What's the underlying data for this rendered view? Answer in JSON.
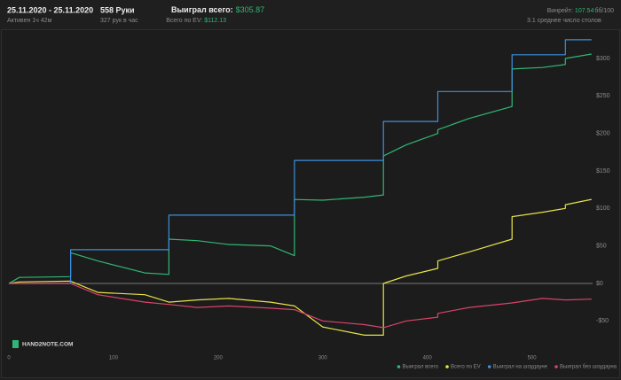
{
  "header": {
    "date_range": "25.11.2020 - 25.11.2020",
    "active": "Активен 1ч 42м",
    "hands": "558 Руки",
    "hands_per_hour": "327 рук в час",
    "won_total_label": "Выиграл всего:",
    "won_total_value": "$305.87",
    "ev_label": "Всего по EV:",
    "ev_value": "$112.13",
    "winrate_label": "Винрейт:",
    "winrate_value": "107.54",
    "winrate_unit": "бб/100",
    "tables": "3.1 среднее число столов"
  },
  "chart_data": {
    "type": "line",
    "watermark": "HAND2NOTE.COM",
    "x": [
      0,
      10,
      59,
      59,
      85,
      130,
      153,
      153,
      180,
      210,
      250,
      273,
      273,
      300,
      340,
      358,
      358,
      380,
      410,
      410,
      440,
      481,
      481,
      510,
      532,
      532,
      557
    ],
    "series": [
      {
        "name": "Выиграл всего",
        "color": "#2fb774",
        "values": [
          0,
          8,
          9,
          41,
          30,
          14,
          12,
          59,
          57,
          52,
          50,
          37,
          112,
          111,
          115,
          118,
          170,
          185,
          200,
          205,
          220,
          236,
          286,
          288,
          292,
          300,
          305.87
        ]
      },
      {
        "name": "Всего по EV",
        "color": "#e6e247",
        "values": [
          0,
          2,
          3,
          3,
          -12,
          -15,
          -25,
          -25,
          -22,
          -20,
          -25,
          -30,
          -30,
          -58,
          -69,
          -69,
          0,
          10,
          20,
          30,
          42,
          59,
          89,
          95,
          100,
          105,
          112.13
        ]
      },
      {
        "name": "Выиграл на шоудауне",
        "color": "#3d8fdd",
        "values": [
          0,
          0,
          0,
          45,
          45,
          45,
          45,
          91,
          91,
          91,
          91,
          91,
          164,
          164,
          164,
          164,
          216,
          216,
          216,
          256,
          256,
          256,
          305,
          305,
          305,
          325,
          325
        ]
      },
      {
        "name": "Выиграл без шоудауна",
        "color": "#d9436a",
        "values": [
          0,
          0,
          0,
          0,
          -15,
          -25,
          -28,
          -28,
          -32,
          -30,
          -33,
          -35,
          -35,
          -50,
          -55,
          -59,
          -59,
          -50,
          -45,
          -40,
          -32,
          -26,
          -26,
          -20,
          -22,
          -22,
          -21
        ]
      }
    ],
    "xlim": [
      0,
      558
    ],
    "xticks": [
      0,
      100,
      200,
      300,
      400,
      500
    ],
    "ylim": [
      -91,
      352
    ],
    "yticks": [
      {
        "value": -50,
        "label": "-$50"
      },
      {
        "value": 0,
        "label": "$0"
      },
      {
        "value": 50,
        "label": "$50"
      },
      {
        "value": 100,
        "label": "$100"
      },
      {
        "value": 150,
        "label": "$150"
      },
      {
        "value": 200,
        "label": "$200"
      },
      {
        "value": 250,
        "label": "$250"
      },
      {
        "value": 300,
        "label": "$300"
      }
    ],
    "zero_line": true,
    "grid": false,
    "legend": "bottom-right"
  }
}
